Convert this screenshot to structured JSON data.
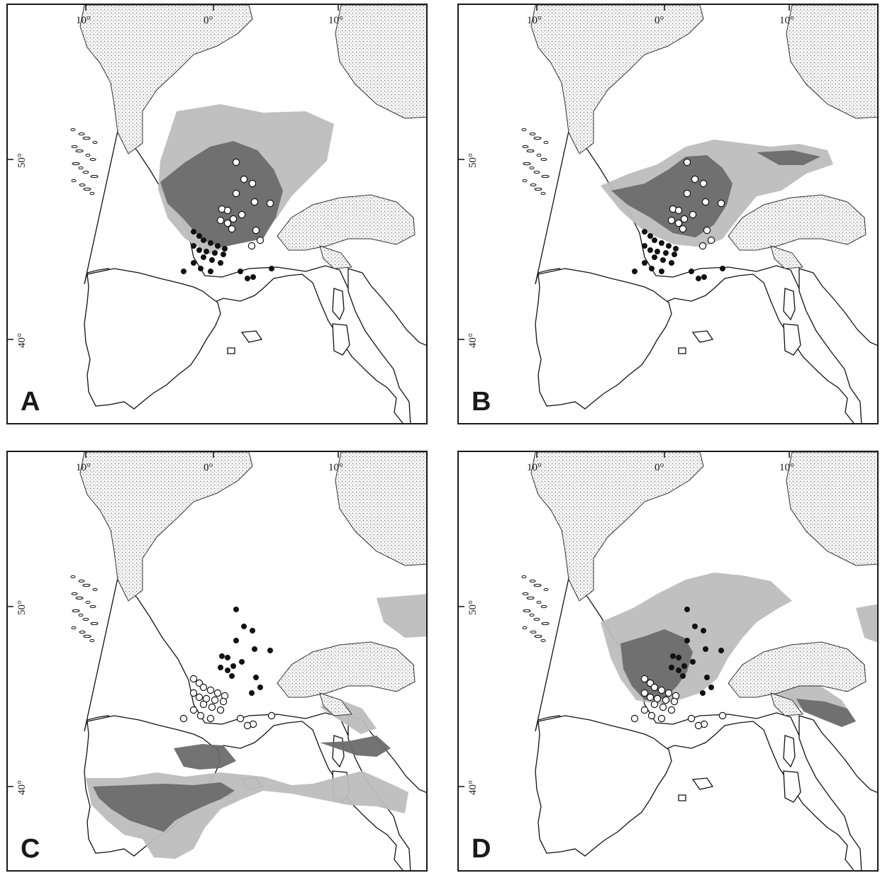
{
  "figure": {
    "tick_labels": {
      "longitude": [
        "10°",
        "0°",
        "10°"
      ],
      "latitude": [
        "50°",
        "40°"
      ]
    },
    "colors": {
      "ice": "#e9e9e9",
      "land_outline": "#111111",
      "suitability_high": "#6b6b6b",
      "suitability_low": "#bdbdbd",
      "point_black": "#111111",
      "point_white": "#ffffff"
    },
    "panels": [
      {
        "id": "A",
        "label": "A",
        "pattern": "north",
        "white_group": "north",
        "grey_region": "france-broad"
      },
      {
        "id": "B",
        "label": "B",
        "pattern": "north",
        "white_group": "north",
        "grey_region": "france-central"
      },
      {
        "id": "C",
        "label": "C",
        "pattern": "south",
        "white_group": "south",
        "grey_region": "iberia"
      },
      {
        "id": "D",
        "label": "D",
        "pattern": "south",
        "white_group": "south",
        "grey_region": "sw-france"
      }
    ]
  }
}
